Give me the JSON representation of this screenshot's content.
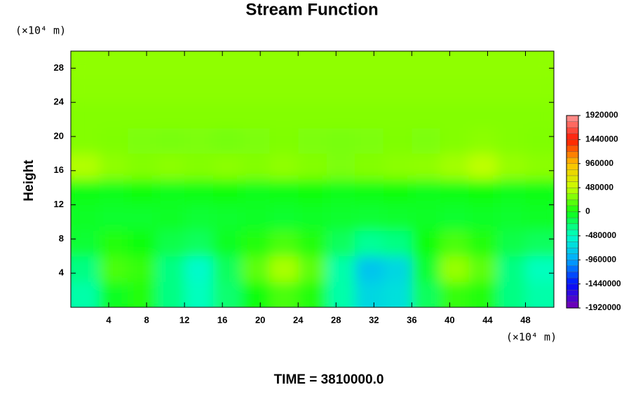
{
  "chart_data": {
    "type": "heatmap",
    "title": "Stream Function",
    "ylabel": "Height",
    "x_unit": "(×10⁴ m)",
    "y_unit": "(×10⁴ m)",
    "footer": "TIME = 3810000.0",
    "xlim": [
      0,
      51
    ],
    "ylim": [
      0,
      30
    ],
    "xticks": [
      4,
      8,
      12,
      16,
      20,
      24,
      28,
      32,
      36,
      40,
      44,
      48
    ],
    "yticks": [
      4,
      8,
      12,
      16,
      20,
      24,
      28
    ],
    "x": [
      1.5,
      4.5,
      7.5,
      10.5,
      13.5,
      16.5,
      19.5,
      22.5,
      25.5,
      28.5,
      31.5,
      34.5,
      37.5,
      40.5,
      43.5,
      46.5,
      49.5
    ],
    "y": [
      1.5,
      4.5,
      7.5,
      10.5,
      13.5,
      16.5,
      19.5,
      22.5,
      25.5,
      28.5
    ],
    "z": [
      [
        -400000,
        -50000,
        50000,
        -300000,
        -450000,
        -250000,
        0,
        150000,
        50000,
        -400000,
        -700000,
        -650000,
        -200000,
        100000,
        50000,
        -300000,
        -400000
      ],
      [
        -300000,
        150000,
        100000,
        -300000,
        -500000,
        -200000,
        200000,
        400000,
        200000,
        -400000,
        -800000,
        -700000,
        -100000,
        350000,
        200000,
        -300000,
        -450000
      ],
      [
        -100000,
        50000,
        0,
        -150000,
        -200000,
        -50000,
        50000,
        150000,
        50000,
        -200000,
        -350000,
        -300000,
        0,
        150000,
        50000,
        -150000,
        -200000
      ],
      [
        -60000,
        -80000,
        -80000,
        -60000,
        -100000,
        -80000,
        -60000,
        -80000,
        -60000,
        -80000,
        -100000,
        -80000,
        -60000,
        -80000,
        -60000,
        -80000,
        -60000
      ],
      [
        -20000,
        -30000,
        0,
        -30000,
        -20000,
        0,
        -30000,
        -20000,
        0,
        -30000,
        -20000,
        0,
        -30000,
        -20000,
        0,
        -30000,
        -20000
      ],
      [
        420000,
        330000,
        300000,
        320000,
        300000,
        320000,
        300000,
        330000,
        300000,
        280000,
        300000,
        320000,
        330000,
        380000,
        450000,
        350000,
        320000
      ],
      [
        300000,
        290000,
        280000,
        270000,
        280000,
        260000,
        280000,
        290000,
        280000,
        270000,
        280000,
        290000,
        280000,
        300000,
        320000,
        300000,
        290000
      ],
      [
        300000,
        300000,
        300000,
        300000,
        300000,
        300000,
        300000,
        300000,
        300000,
        300000,
        300000,
        300000,
        300000,
        300000,
        300000,
        300000,
        300000
      ],
      [
        320000,
        320000,
        320000,
        320000,
        320000,
        320000,
        320000,
        320000,
        320000,
        320000,
        320000,
        320000,
        320000,
        320000,
        320000,
        320000,
        320000
      ],
      [
        330000,
        330000,
        330000,
        330000,
        330000,
        330000,
        330000,
        330000,
        330000,
        330000,
        330000,
        330000,
        330000,
        330000,
        330000,
        330000,
        330000
      ]
    ],
    "colorbar": {
      "ticks": [
        -1920000,
        -1440000,
        -960000,
        -480000,
        0,
        480000,
        960000,
        1440000,
        1920000
      ],
      "colors": [
        "#7a00b0",
        "#0010ff",
        "#00a8ff",
        "#00ffc8",
        "#10ff10",
        "#c8ff00",
        "#ffc000",
        "#ff1800",
        "#ff9a9a"
      ]
    }
  }
}
